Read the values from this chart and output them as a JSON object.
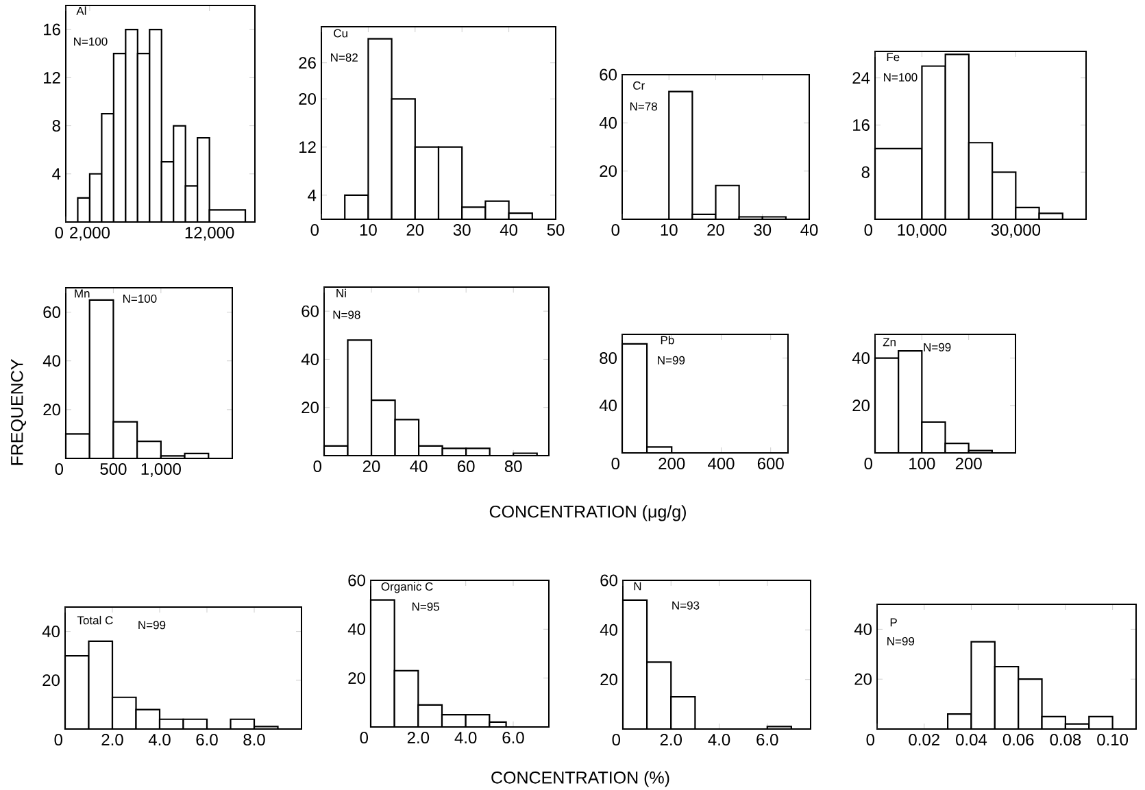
{
  "chart_data": [
    {
      "type": "histogram",
      "title": "Al",
      "annotations": [
        "N=100"
      ],
      "color": "#000000",
      "bins": [
        1000,
        2000,
        3000,
        4000,
        5000,
        6000,
        7000,
        8000,
        9000,
        10000,
        11000,
        12000,
        15000
      ],
      "values": [
        2,
        4,
        9,
        14,
        16,
        14,
        16,
        5,
        8,
        3,
        7,
        1
      ],
      "xlim": [
        0,
        15800
      ],
      "ylim": [
        0,
        18
      ],
      "xticks": [
        0,
        {
          "value": 2000,
          "label": "2,000"
        },
        {
          "value": 12000,
          "label": "12,000"
        }
      ],
      "yticks": [
        4,
        8,
        12,
        16
      ]
    },
    {
      "type": "histogram",
      "title": "Cu",
      "annotations": [
        "N=82"
      ],
      "color": "#000000",
      "bins": [
        5,
        10,
        15,
        20,
        25,
        30,
        35,
        40,
        45
      ],
      "values": [
        4,
        30,
        20,
        12,
        12,
        2,
        3,
        1
      ],
      "xlim": [
        0,
        50
      ],
      "ylim": [
        0,
        32
      ],
      "xticks": [
        0,
        10,
        20,
        30,
        40,
        50
      ],
      "yticks": [
        4,
        12,
        20,
        26
      ]
    },
    {
      "type": "histogram",
      "title": "Cr",
      "annotations": [
        "N=78"
      ],
      "color": "#000000",
      "bins": [
        10,
        15,
        20,
        25,
        30,
        35
      ],
      "values": [
        53,
        2,
        14,
        1,
        1
      ],
      "xlim": [
        0,
        40
      ],
      "ylim": [
        0,
        60
      ],
      "xticks": [
        0,
        10,
        20,
        30,
        40
      ],
      "yticks": [
        20,
        40,
        60
      ]
    },
    {
      "type": "histogram",
      "title": "Fe",
      "annotations": [
        "N=100"
      ],
      "color": "#000000",
      "bins": [
        0,
        10000,
        15000,
        20000,
        25000,
        30000,
        35000,
        40000
      ],
      "values": [
        12,
        26,
        28,
        13,
        8,
        2,
        1
      ],
      "xlim": [
        0,
        45000
      ],
      "ylim": [
        0,
        28.5
      ],
      "xticks": [
        0,
        {
          "value": 10000,
          "label": "10,000"
        },
        {
          "value": 30000,
          "label": "30,000"
        }
      ],
      "yticks": [
        8,
        16,
        24
      ]
    },
    {
      "type": "histogram",
      "title": "Mn",
      "annotations": [
        "N=100"
      ],
      "ylabel": "FREQUENCY",
      "color": "#000000",
      "bins": [
        0,
        250,
        500,
        750,
        1000,
        1250,
        1500
      ],
      "values": [
        10,
        65,
        15,
        7,
        1,
        2
      ],
      "xlim": [
        0,
        1750
      ],
      "ylim": [
        0,
        70
      ],
      "xticks": [
        0,
        500,
        {
          "value": 1000,
          "label": "1,000"
        }
      ],
      "yticks": [
        20,
        40,
        60
      ]
    },
    {
      "type": "histogram",
      "title": "Ni",
      "annotations": [
        "N=98"
      ],
      "xlabel": "CONCENTRATION (μg/g)",
      "color": "#000000",
      "bins": [
        0,
        10,
        20,
        30,
        40,
        50,
        60,
        70,
        80,
        90
      ],
      "values": [
        4,
        48,
        23,
        15,
        4,
        3,
        3,
        0,
        1
      ],
      "xlim": [
        0,
        95
      ],
      "ylim": [
        0,
        70
      ],
      "xticks": [
        0,
        20,
        40,
        60,
        80
      ],
      "yticks": [
        20,
        40,
        60
      ]
    },
    {
      "type": "histogram",
      "title": "Pb",
      "annotations": [
        "N=99"
      ],
      "color": "#000000",
      "bins": [
        0,
        100,
        200
      ],
      "values": [
        92,
        5
      ],
      "xlim": [
        0,
        670
      ],
      "ylim": [
        0,
        100
      ],
      "xticks": [
        0,
        200,
        400,
        600
      ],
      "yticks": [
        40,
        80
      ]
    },
    {
      "type": "histogram",
      "title": "Zn",
      "annotations": [
        "N=99"
      ],
      "color": "#000000",
      "bins": [
        0,
        50,
        100,
        150,
        200,
        250
      ],
      "values": [
        40,
        43,
        13,
        4,
        1
      ],
      "xlim": [
        0,
        300
      ],
      "ylim": [
        0,
        50
      ],
      "xticks": [
        0,
        100,
        200
      ],
      "yticks": [
        20,
        40
      ]
    },
    {
      "type": "histogram",
      "title": "Total C",
      "annotations": [
        "N=99"
      ],
      "color": "#000000",
      "bins": [
        0,
        1,
        2,
        3,
        4,
        5,
        6,
        7,
        8,
        9
      ],
      "values": [
        30,
        36,
        13,
        8,
        4,
        4,
        0,
        4,
        1
      ],
      "xlim": [
        0,
        10
      ],
      "ylim": [
        0,
        50
      ],
      "xticks": [
        0,
        {
          "value": 2,
          "label": "2.0"
        },
        {
          "value": 4,
          "label": "4.0"
        },
        {
          "value": 6,
          "label": "6.0"
        },
        {
          "value": 8,
          "label": "8.0"
        }
      ],
      "yticks": [
        20,
        40
      ]
    },
    {
      "type": "histogram",
      "title": "Organic C",
      "annotations": [
        "N=95"
      ],
      "xlabel": "CONCENTRATION (%)",
      "color": "#000000",
      "bins": [
        0,
        1,
        2,
        3,
        4,
        5,
        5.7
      ],
      "values": [
        52,
        23,
        9,
        5,
        5,
        2
      ],
      "xlim": [
        0,
        7.5
      ],
      "ylim": [
        0,
        60
      ],
      "xticks": [
        0,
        {
          "value": 2,
          "label": "2.0"
        },
        {
          "value": 4,
          "label": "4.0"
        },
        {
          "value": 6,
          "label": "6.0"
        }
      ],
      "yticks": [
        20,
        40,
        60
      ]
    },
    {
      "type": "histogram",
      "title": "N",
      "annotations": [
        "N=93"
      ],
      "color": "#000000",
      "bins": [
        0,
        1,
        2,
        3,
        4,
        5,
        6,
        7
      ],
      "values": [
        52,
        27,
        13,
        0,
        0,
        0,
        1
      ],
      "xlim": [
        0,
        7.8
      ],
      "ylim": [
        0,
        60
      ],
      "xticks": [
        0,
        {
          "value": 2,
          "label": "2.0"
        },
        {
          "value": 4,
          "label": "4.0"
        },
        {
          "value": 6,
          "label": "6.0"
        }
      ],
      "yticks": [
        20,
        40,
        60
      ]
    },
    {
      "type": "histogram",
      "title": "P",
      "annotations": [
        "N=99"
      ],
      "color": "#000000",
      "bins": [
        0.03,
        0.04,
        0.05,
        0.06,
        0.07,
        0.08,
        0.09,
        0.1
      ],
      "values": [
        6,
        35,
        25,
        20,
        5,
        2,
        5
      ],
      "xlim": [
        0,
        0.11
      ],
      "ylim": [
        0,
        50
      ],
      "xticks": [
        0,
        0.02,
        0.04,
        0.06,
        0.08,
        {
          "value": 0.1,
          "label": "0.10"
        }
      ],
      "yticks": [
        20,
        40
      ]
    }
  ]
}
